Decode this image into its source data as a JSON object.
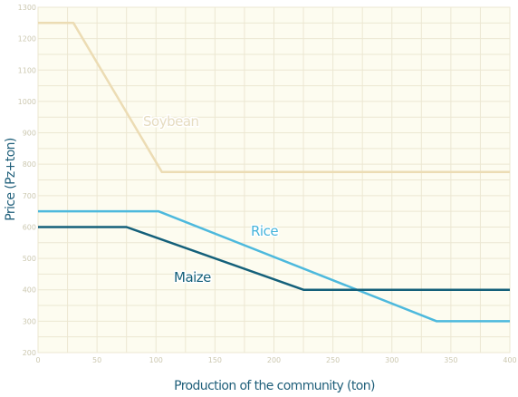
{
  "chart_data": {
    "type": "line",
    "xlabel": "Production of the community (ton)",
    "ylabel": "Price (Pz+ton)",
    "xlim": [
      0,
      400
    ],
    "ylim": [
      200,
      1300
    ],
    "grid": true,
    "x_ticks": [
      "0",
      "50",
      "100",
      "150",
      "200",
      "250",
      "300",
      "350",
      "400"
    ],
    "y_ticks": [
      "200",
      "300",
      "400",
      "500",
      "600",
      "700",
      "800",
      "900",
      "1000",
      "1100",
      "1200",
      "1300"
    ],
    "series": [
      {
        "name": "Soybean",
        "color": "#ecdcb4",
        "label_color": "#e6dcc0",
        "points": [
          [
            0,
            1250
          ],
          [
            30,
            1250
          ],
          [
            105,
            775
          ],
          [
            400,
            775
          ]
        ]
      },
      {
        "name": "Rice",
        "color": "#4db9dd",
        "label_color": "#46b4da",
        "points": [
          [
            0,
            650
          ],
          [
            102,
            650
          ],
          [
            338,
            300
          ],
          [
            400,
            300
          ]
        ]
      },
      {
        "name": "Maize",
        "color": "#14607a",
        "label_color": "#14607a",
        "points": [
          [
            0,
            600
          ],
          [
            75,
            600
          ],
          [
            225,
            400
          ],
          [
            400,
            400
          ]
        ]
      }
    ]
  }
}
